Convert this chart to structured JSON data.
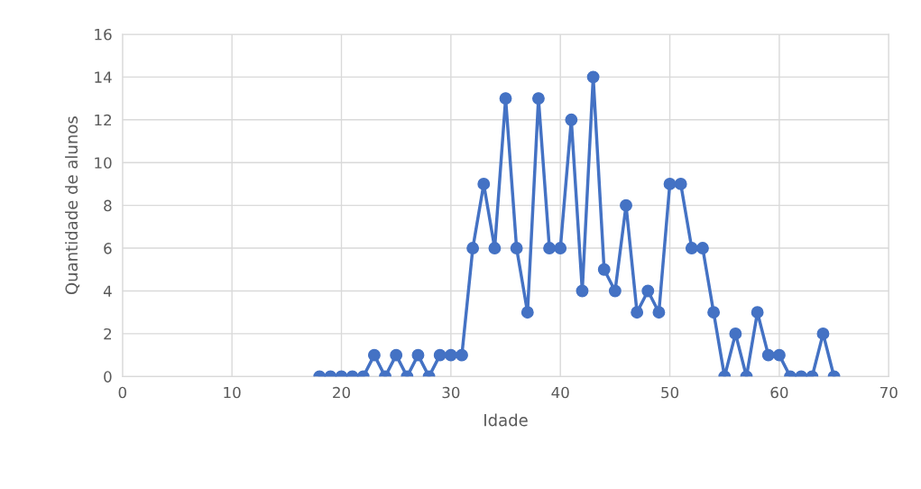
{
  "chart_data": {
    "type": "line",
    "xlabel": "Idade",
    "ylabel": "Quantidade de alunos",
    "x": [
      18,
      19,
      20,
      21,
      22,
      23,
      24,
      25,
      26,
      27,
      28,
      29,
      30,
      31,
      32,
      33,
      34,
      35,
      36,
      37,
      38,
      39,
      40,
      41,
      42,
      43,
      44,
      45,
      46,
      47,
      48,
      49,
      50,
      51,
      52,
      53,
      54,
      55,
      56,
      57,
      58,
      59,
      60,
      61,
      62,
      63,
      64,
      65
    ],
    "series": [
      {
        "color": "#4472c4",
        "values": [
          0,
          0,
          0,
          0,
          0,
          1,
          0,
          1,
          0,
          1,
          0,
          1,
          1,
          1,
          6,
          9,
          6,
          13,
          6,
          3,
          13,
          6,
          6,
          12,
          4,
          14,
          5,
          4,
          8,
          3,
          4,
          3,
          9,
          9,
          6,
          6,
          3,
          0,
          2,
          0,
          3,
          1,
          1,
          0,
          0,
          0,
          2,
          0
        ]
      }
    ],
    "xlim": [
      0,
      70
    ],
    "xticks": [
      0,
      10,
      20,
      30,
      40,
      50,
      60,
      70
    ],
    "ylim": [
      0,
      16
    ],
    "yticks": [
      0,
      2,
      4,
      6,
      8,
      10,
      12,
      14,
      16
    ],
    "grid": true,
    "marker": "circle",
    "line_style": "solid"
  }
}
